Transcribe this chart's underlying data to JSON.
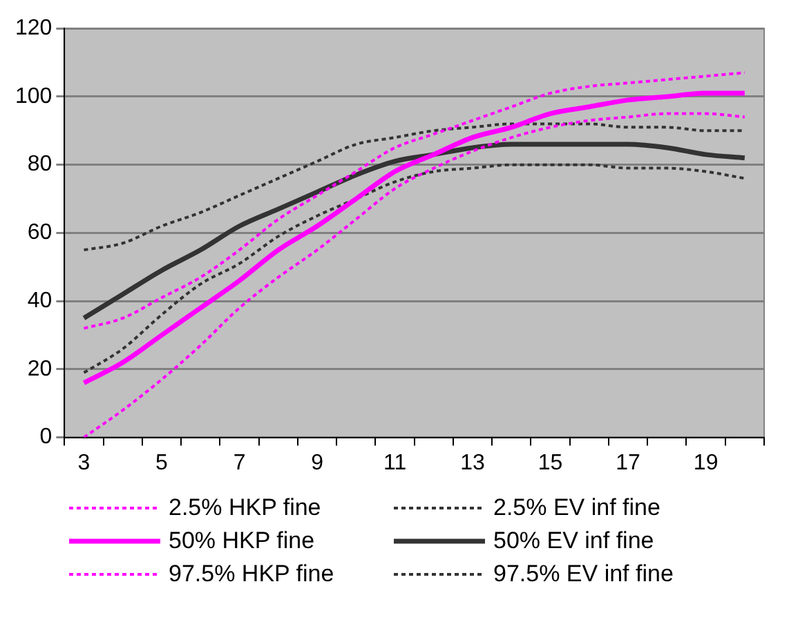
{
  "chart_data": {
    "type": "line",
    "categories": [
      "3",
      null,
      "5",
      null,
      "7",
      null,
      "9",
      null,
      "11",
      null,
      "13",
      null,
      "15",
      null,
      "17",
      null,
      "19",
      null
    ],
    "series": [
      {
        "name": "2.5% HKP fine",
        "color": "#ff00ff",
        "line_style": "dotted",
        "values": [
          0,
          8,
          17,
          27,
          38,
          47,
          55,
          64,
          73,
          79,
          84,
          88,
          91,
          93,
          94,
          95,
          95,
          94
        ]
      },
      {
        "name": "50% HKP fine",
        "color": "#ff00ff",
        "line_style": "solid",
        "values": [
          16,
          22,
          30,
          38,
          46,
          55,
          62,
          70,
          78,
          83,
          88,
          91,
          95,
          97,
          99,
          100,
          101,
          101
        ]
      },
      {
        "name": "97.5% HKP fine",
        "color": "#ff00ff",
        "line_style": "dotted",
        "values": [
          32,
          35,
          41,
          47,
          55,
          64,
          71,
          78,
          85,
          89,
          93,
          97,
          101,
          103,
          104,
          105,
          106,
          107
        ]
      },
      {
        "name": "2.5% EV inf fine",
        "color": "#333333",
        "line_style": "dotted",
        "values": [
          19,
          26,
          36,
          45,
          51,
          59,
          65,
          70,
          75,
          78,
          79,
          80,
          80,
          80,
          79,
          79,
          78,
          76
        ]
      },
      {
        "name": "50% EV inf fine",
        "color": "#333333",
        "line_style": "solid",
        "values": [
          35,
          42,
          49,
          55,
          62,
          67,
          72,
          77,
          81,
          83,
          85,
          86,
          86,
          86,
          86,
          85,
          83,
          82
        ]
      },
      {
        "name": "97.5% EV inf fine",
        "color": "#333333",
        "line_style": "dotted",
        "values": [
          55,
          57,
          62,
          66,
          71,
          76,
          81,
          86,
          88,
          90,
          91,
          92,
          92,
          92,
          91,
          91,
          90,
          90
        ]
      }
    ],
    "ylim": [
      0,
      120
    ],
    "yticks": [
      0,
      20,
      40,
      60,
      80,
      100,
      120
    ],
    "grid": "y",
    "legend": "bottom",
    "marker": "none"
  }
}
